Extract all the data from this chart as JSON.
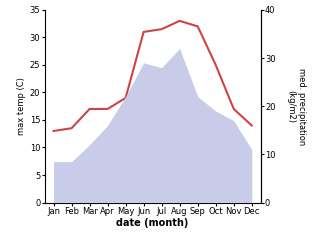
{
  "months": [
    "Jan",
    "Feb",
    "Mar",
    "Apr",
    "May",
    "Jun",
    "Jul",
    "Aug",
    "Sep",
    "Oct",
    "Nov",
    "Dec"
  ],
  "temperature": [
    13,
    13.5,
    17,
    17,
    19,
    31,
    31.5,
    33,
    32,
    25,
    17,
    14
  ],
  "precipitation": [
    8.5,
    8.5,
    12,
    16,
    22,
    29,
    28,
    32,
    22,
    19,
    17,
    11
  ],
  "temp_color": "#cc4444",
  "precip_fill_color": "#c8cce8",
  "ylabel_left": "max temp (C)",
  "ylabel_right": "med. precipitation\n(kg/m2)",
  "xlabel": "date (month)",
  "ylim_left": [
    0,
    35
  ],
  "ylim_right": [
    0,
    40
  ],
  "yticks_left": [
    0,
    5,
    10,
    15,
    20,
    25,
    30,
    35
  ],
  "yticks_right": [
    0,
    10,
    20,
    30,
    40
  ],
  "bg_color": "#ffffff"
}
